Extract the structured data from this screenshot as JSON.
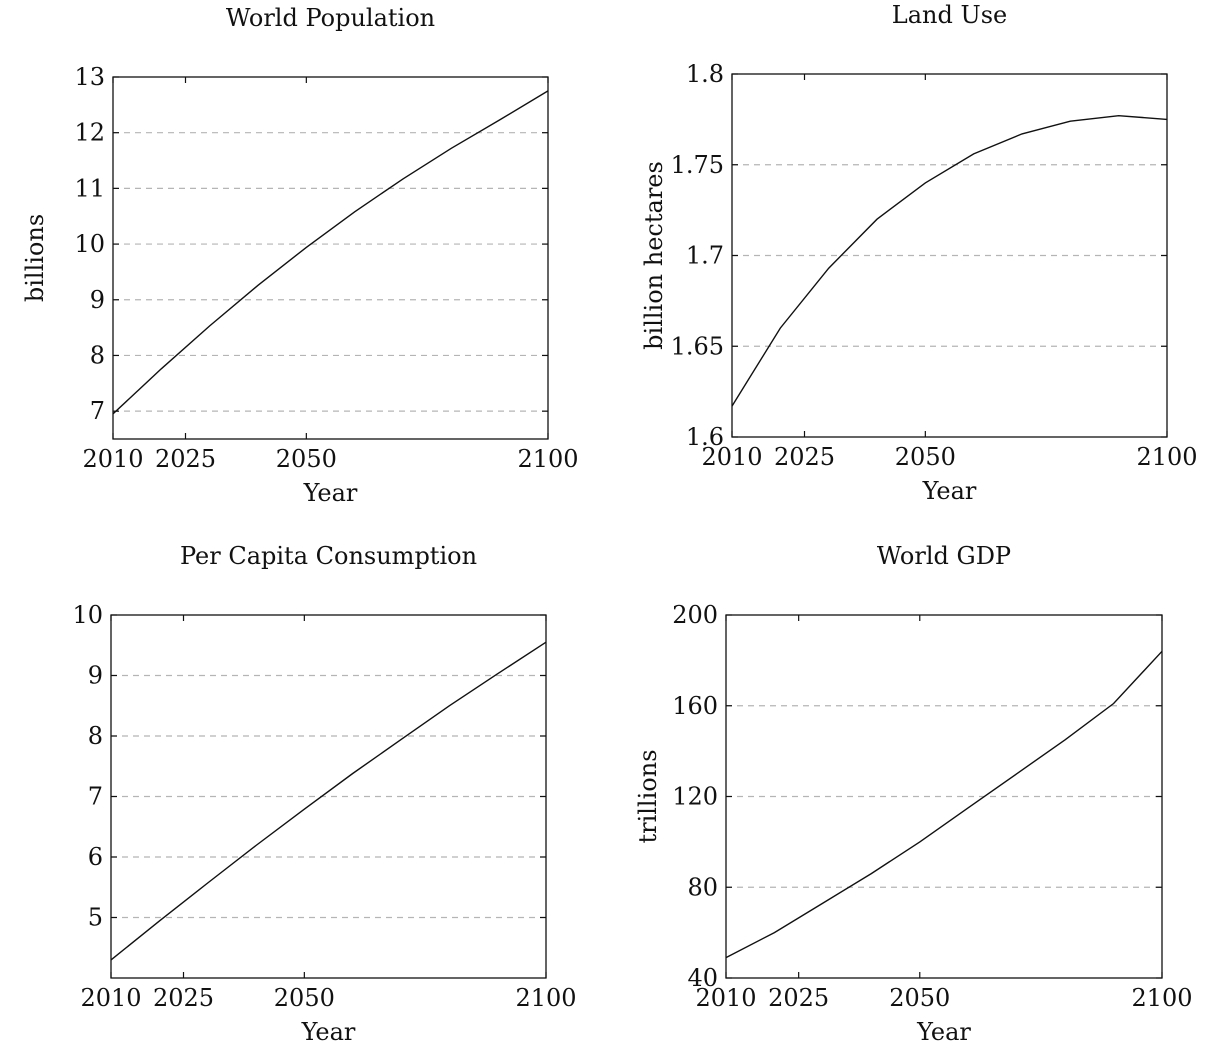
{
  "chart_data": [
    {
      "type": "line",
      "title": "World Population",
      "xlabel": "Year",
      "ylabel": "billions",
      "xlim": [
        2010,
        2100
      ],
      "ylim": [
        6.5,
        13
      ],
      "xticks": [
        2010,
        2025,
        2050,
        2100
      ],
      "xtick_labels": [
        "2010",
        "2025",
        "2050",
        "2100"
      ],
      "yticks": [
        7,
        8,
        9,
        10,
        11,
        12,
        13
      ],
      "ytick_labels": [
        "7",
        "8",
        "9",
        "10",
        "11",
        "12",
        "13"
      ],
      "grid": "horizontal dashed",
      "series": [
        {
          "x": [
            2010,
            2020,
            2030,
            2040,
            2050,
            2060,
            2070,
            2080,
            2090,
            2100
          ],
          "y": [
            6.95,
            7.76,
            8.53,
            9.26,
            9.94,
            10.58,
            11.17,
            11.72,
            12.23,
            12.75
          ]
        }
      ]
    },
    {
      "type": "line",
      "title": "Land Use",
      "xlabel": "Year",
      "ylabel": "billion hectares",
      "xlim": [
        2010,
        2100
      ],
      "ylim": [
        1.6,
        1.8
      ],
      "xticks": [
        2010,
        2025,
        2050,
        2100
      ],
      "xtick_labels": [
        "2010",
        "2025",
        "2050",
        "2100"
      ],
      "yticks": [
        1.6,
        1.65,
        1.7,
        1.75,
        1.8
      ],
      "ytick_labels": [
        "1.6",
        "1.65",
        "1.7",
        "1.75",
        "1.8"
      ],
      "grid": "horizontal dashed",
      "series": [
        {
          "x": [
            2010,
            2020,
            2030,
            2040,
            2050,
            2060,
            2070,
            2080,
            2090,
            2100
          ],
          "y": [
            1.617,
            1.66,
            1.693,
            1.72,
            1.74,
            1.756,
            1.767,
            1.774,
            1.777,
            1.775
          ]
        }
      ]
    },
    {
      "type": "line",
      "title": "Per Capita Consumption",
      "xlabel": "Year",
      "ylabel": "",
      "xlim": [
        2010,
        2100
      ],
      "ylim": [
        4,
        10
      ],
      "xticks": [
        2010,
        2025,
        2050,
        2100
      ],
      "xtick_labels": [
        "2010",
        "2025",
        "2050",
        "2100"
      ],
      "yticks": [
        5,
        6,
        7,
        8,
        9,
        10
      ],
      "ytick_labels": [
        "5",
        "6",
        "7",
        "8",
        "9",
        "10"
      ],
      "grid": "horizontal dashed",
      "series": [
        {
          "x": [
            2010,
            2020,
            2030,
            2040,
            2050,
            2060,
            2070,
            2080,
            2090,
            2100
          ],
          "y": [
            4.3,
            4.94,
            5.57,
            6.19,
            6.79,
            7.38,
            7.94,
            8.5,
            9.03,
            9.55
          ]
        }
      ]
    },
    {
      "type": "line",
      "title": "World GDP",
      "xlabel": "Year",
      "ylabel": "trillions",
      "xlim": [
        2010,
        2100
      ],
      "ylim": [
        40,
        200
      ],
      "xticks": [
        2010,
        2025,
        2050,
        2100
      ],
      "xtick_labels": [
        "2010",
        "2025",
        "2050",
        "2100"
      ],
      "yticks": [
        40,
        80,
        120,
        160,
        200
      ],
      "ytick_labels": [
        "40",
        "80",
        "120",
        "160",
        "200"
      ],
      "grid": "horizontal dashed",
      "series": [
        {
          "x": [
            2010,
            2020,
            2030,
            2040,
            2050,
            2060,
            2070,
            2080,
            2090,
            2100
          ],
          "y": [
            49,
            60,
            73,
            86,
            100,
            115,
            130,
            145,
            161,
            184
          ]
        }
      ]
    }
  ]
}
